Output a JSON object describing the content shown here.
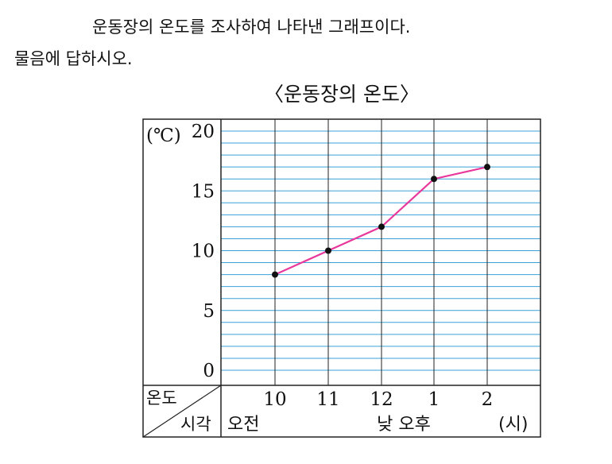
{
  "question": {
    "line1": "운동장의 온도를 조사하여 나타낸 그래프이다.",
    "line2": "물음에 답하시오."
  },
  "chart_data": {
    "type": "line",
    "title": "〈운동장의 온도〉",
    "yunit": "(℃)",
    "yticks": [
      "0",
      "5",
      "10",
      "15",
      "20"
    ],
    "ylim": [
      0,
      20
    ],
    "minor_step": 1,
    "x_categories": [
      "10",
      "11",
      "12",
      "1",
      "2"
    ],
    "x": [
      "10",
      "11",
      "12",
      "1",
      "2"
    ],
    "values": [
      8,
      10,
      12,
      16,
      17
    ],
    "corner_top": "온도",
    "corner_bottom": "시각",
    "am_label": "오전",
    "pm_label": "낮 오후",
    "xunit": "(시)",
    "grid": true,
    "colors": {
      "line": "#e8389b",
      "grid_minor": "#3aa0d8",
      "grid_major": "#222222",
      "point": "#111111"
    }
  }
}
